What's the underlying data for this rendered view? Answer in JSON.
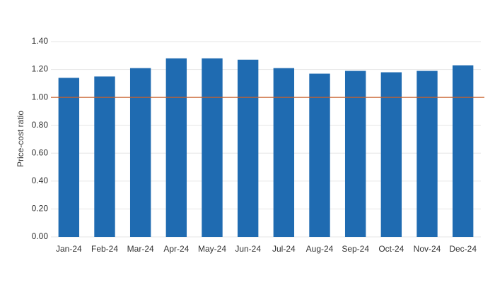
{
  "chart_data": {
    "type": "bar",
    "y_label": "Price-cost ratio",
    "categories": [
      "Jan-24",
      "Feb-24",
      "Mar-24",
      "Apr-24",
      "May-24",
      "Jun-24",
      "Jul-24",
      "Aug-24",
      "Sep-24",
      "Oct-24",
      "Nov-24",
      "Dec-24"
    ],
    "values": [
      1.14,
      1.15,
      1.21,
      1.28,
      1.28,
      1.27,
      1.21,
      1.17,
      1.19,
      1.18,
      1.19,
      1.23
    ],
    "color": "#1f6bb1",
    "ylim": [
      0,
      1.4
    ],
    "yticks": [
      {
        "value": 0,
        "label": "0.00"
      },
      {
        "value": 0.2,
        "label": "0.20"
      },
      {
        "value": 0.4,
        "label": "0.40"
      },
      {
        "value": 0.6,
        "label": "0.60"
      },
      {
        "value": 0.8,
        "label": "0.80"
      },
      {
        "value": 1,
        "label": "1.00"
      },
      {
        "value": 1.2,
        "label": "1.20"
      },
      {
        "value": 1.4,
        "label": "1.40"
      }
    ],
    "grid": true,
    "reference_line": {
      "value": 1,
      "color": "#c8602a"
    }
  }
}
